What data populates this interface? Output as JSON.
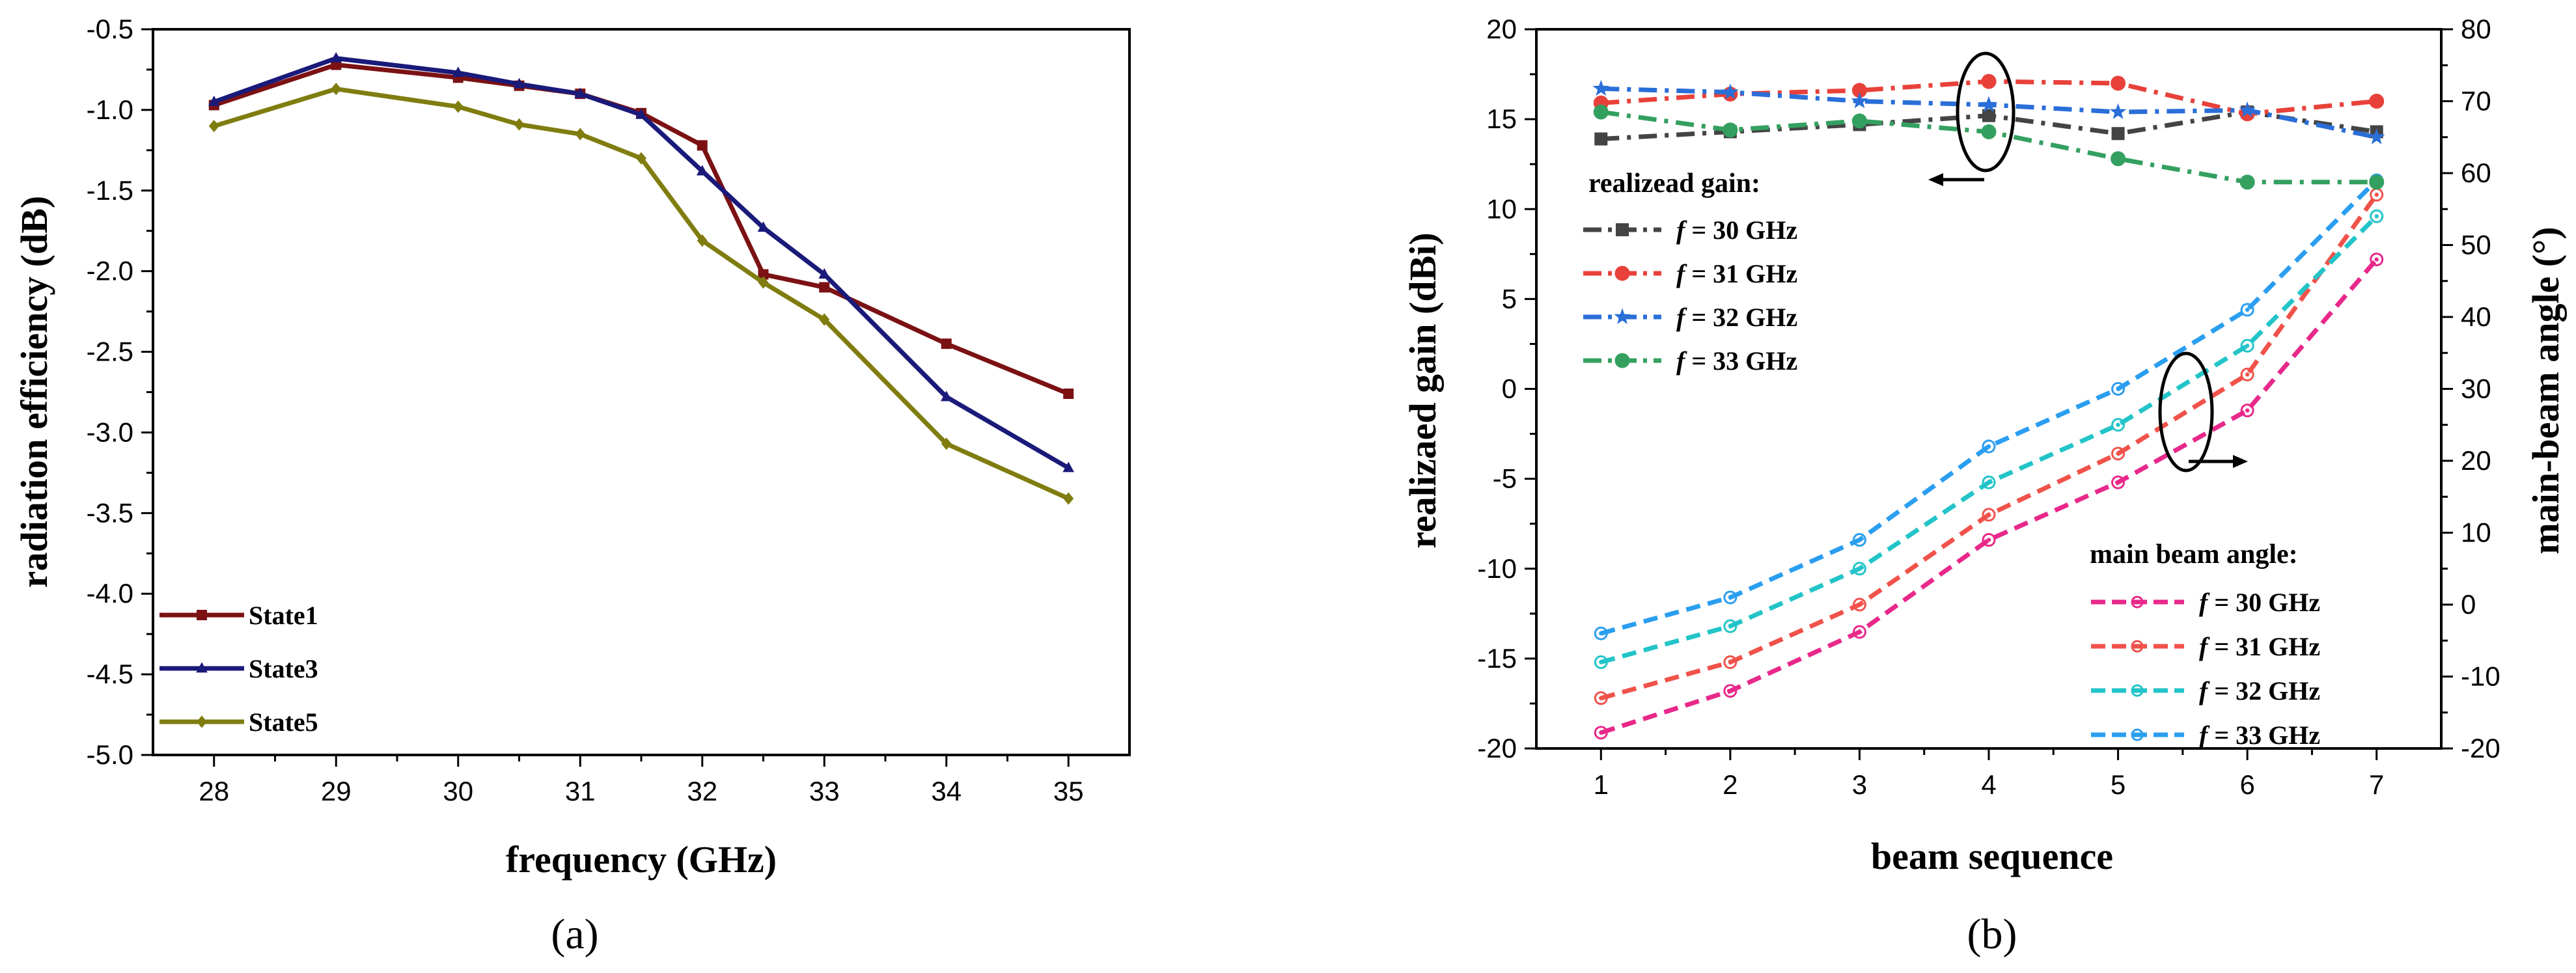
{
  "chart_data": [
    {
      "type": "line",
      "caption": "(a)",
      "xlabel": "frequency (GHz)",
      "ylabel": "radiation efficiency (dB)",
      "xlim": [
        27.5,
        35.5
      ],
      "ylim": [
        -5.0,
        -0.5
      ],
      "xticks": [
        28,
        29,
        30,
        31,
        32,
        33,
        34,
        35
      ],
      "yticks": [
        -0.5,
        -1.0,
        -1.5,
        -2.0,
        -2.5,
        -3.0,
        -3.5,
        -4.0,
        -4.5,
        -5.0
      ],
      "ytick_labels": [
        "-0.5",
        "-1.0",
        "-1.5",
        "-2.0",
        "-2.5",
        "-3.0",
        "-3.5",
        "-4.0",
        "-4.5",
        "-5.0"
      ],
      "legend": "bottom-left",
      "series": [
        {
          "name": "State1",
          "color": "#7b1113",
          "marker": "square",
          "x": [
            28,
            29,
            30,
            30.5,
            31,
            31.5,
            32,
            32.5,
            33,
            34,
            35
          ],
          "y": [
            -0.97,
            -0.72,
            -0.8,
            -0.85,
            -0.9,
            -1.02,
            -1.22,
            -2.02,
            -2.1,
            -2.45,
            -2.76
          ]
        },
        {
          "name": "State3",
          "color": "#1a1a7a",
          "marker": "triangle",
          "x": [
            28,
            29,
            30,
            30.5,
            31,
            31.5,
            32,
            32.5,
            33,
            34,
            35
          ],
          "y": [
            -0.95,
            -0.68,
            -0.77,
            -0.84,
            -0.9,
            -1.03,
            -1.38,
            -1.73,
            -2.02,
            -2.78,
            -3.22
          ]
        },
        {
          "name": "State5",
          "color": "#807d10",
          "marker": "diamond",
          "x": [
            28,
            29,
            30,
            30.5,
            31,
            31.5,
            32,
            32.5,
            33,
            34,
            35
          ],
          "y": [
            -1.1,
            -0.87,
            -0.98,
            -1.09,
            -1.15,
            -1.3,
            -1.81,
            -2.07,
            -2.3,
            -3.07,
            -3.41
          ]
        }
      ]
    },
    {
      "type": "line",
      "caption": "(b)",
      "xlabel": "beam sequence",
      "ylabel": "realizaed gain (dBi)",
      "y2label": "main-beam angle (°)",
      "xlim": [
        0.5,
        7.5
      ],
      "ylim": [
        -20,
        20
      ],
      "y2lim": [
        -20,
        80
      ],
      "xticks": [
        1,
        2,
        3,
        4,
        5,
        6,
        7
      ],
      "yticks": [
        -20,
        -15,
        -10,
        -5,
        0,
        5,
        10,
        15,
        20
      ],
      "y2ticks": [
        -20,
        -10,
        0,
        10,
        20,
        30,
        40,
        50,
        60,
        70,
        80
      ],
      "gain_legend_title": "realizead gain:",
      "angle_legend_title": "main beam angle:",
      "gain_series": [
        {
          "name": "= 30 GHz",
          "color": "#444444",
          "marker": "square",
          "y": [
            13.9,
            14.3,
            14.7,
            15.2,
            14.2,
            15.4,
            14.3
          ]
        },
        {
          "name": "= 31 GHz",
          "color": "#e8413a",
          "marker": "circle",
          "y": [
            15.9,
            16.4,
            16.6,
            17.1,
            17.0,
            15.3,
            16.0
          ]
        },
        {
          "name": "= 32 GHz",
          "color": "#2a6ed8",
          "marker": "star",
          "y": [
            16.7,
            16.5,
            16.0,
            15.8,
            15.4,
            15.5,
            14.0
          ]
        },
        {
          "name": "= 33 GHz",
          "color": "#34a060",
          "marker": "circle",
          "y": [
            15.4,
            14.4,
            14.9,
            14.3,
            12.8,
            11.5,
            11.5
          ]
        }
      ],
      "angle_series": [
        {
          "name": "= 30 GHz",
          "color": "#e8288a",
          "y": [
            -17.8,
            -12,
            -3.8,
            9,
            17,
            27,
            48
          ]
        },
        {
          "name": "= 31 GHz",
          "color": "#f0524a",
          "y": [
            -13,
            -8,
            0,
            12.5,
            21,
            32,
            57
          ]
        },
        {
          "name": "= 32 GHz",
          "color": "#22c4c8",
          "y": [
            -8,
            -3,
            5,
            17,
            25,
            36,
            54
          ]
        },
        {
          "name": "= 33 GHz",
          "color": "#2a9ef0",
          "y": [
            -4,
            1,
            9,
            22,
            30,
            41,
            59
          ]
        }
      ],
      "f_symbol": "f"
    }
  ]
}
